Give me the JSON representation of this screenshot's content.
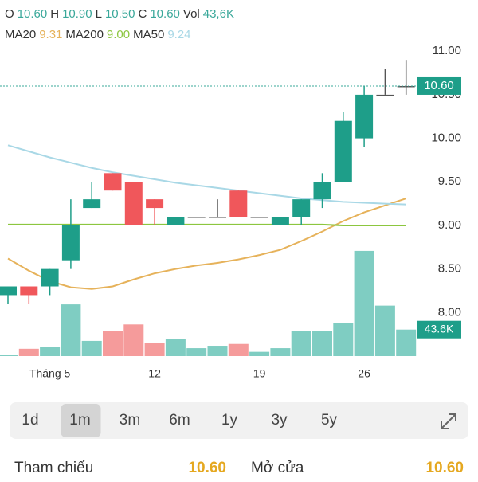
{
  "header": {
    "ohlc": [
      {
        "key": "O",
        "value": "10.60"
      },
      {
        "key": "H",
        "value": "10.90"
      },
      {
        "key": "L",
        "value": "10.50"
      },
      {
        "key": "C",
        "value": "10.60"
      },
      {
        "key": "Vol",
        "value": "43,6K"
      }
    ]
  },
  "chart_data": {
    "type": "candlestick",
    "categories": [
      null,
      null,
      "Tháng 5",
      null,
      null,
      null,
      null,
      "12",
      null,
      null,
      null,
      null,
      "19",
      null,
      null,
      null,
      null,
      "26",
      null,
      null
    ],
    "open": [
      8.2,
      8.3,
      8.3,
      8.6,
      9.2,
      9.6,
      9.5,
      9.3,
      9.0,
      9.1,
      9.1,
      9.4,
      9.1,
      9.0,
      9.1,
      9.3,
      9.5,
      10.0,
      10.5,
      10.6
    ],
    "high": [
      8.3,
      8.3,
      8.5,
      9.3,
      9.5,
      9.6,
      9.5,
      9.3,
      9.1,
      9.1,
      9.3,
      9.4,
      9.1,
      9.1,
      9.3,
      9.6,
      10.3,
      10.6,
      10.8,
      10.9
    ],
    "low": [
      8.1,
      8.1,
      8.2,
      8.5,
      9.2,
      9.4,
      9.0,
      9.0,
      9.0,
      9.1,
      9.1,
      9.1,
      9.1,
      9.0,
      9.0,
      9.2,
      9.5,
      9.9,
      10.5,
      10.5
    ],
    "close": [
      8.3,
      8.2,
      8.5,
      9.0,
      9.3,
      9.4,
      9.0,
      9.2,
      9.1,
      9.1,
      9.1,
      9.1,
      9.1,
      9.1,
      9.3,
      9.5,
      10.2,
      10.5,
      10.5,
      10.6
    ],
    "volume": [
      2,
      12,
      15,
      85,
      25,
      41,
      52,
      21,
      28,
      13,
      17,
      20,
      7,
      13,
      41,
      41,
      54,
      173,
      83,
      43.6
    ],
    "volume_label": "43.6K",
    "vlim": [
      0,
      520
    ],
    "colors": {
      "up": "#1e9e89",
      "down": "#f0575b",
      "flat": "#555555",
      "up_volume": "#7fcdc2",
      "down_volume": "#f59b9b"
    },
    "ma": [
      {
        "name": "MA20",
        "label": "9.31",
        "color": "#e6b25a",
        "values": [
          8.62,
          8.48,
          8.36,
          8.29,
          8.27,
          8.3,
          8.38,
          8.45,
          8.5,
          8.54,
          8.57,
          8.61,
          8.66,
          8.72,
          8.82,
          8.93,
          9.05,
          9.15,
          9.23,
          9.31
        ]
      },
      {
        "name": "MA200",
        "label": "9.00",
        "color": "#8cc63f",
        "values": [
          9.01,
          9.01,
          9.01,
          9.01,
          9.01,
          9.01,
          9.01,
          9.01,
          9.01,
          9.01,
          9.01,
          9.01,
          9.01,
          9.01,
          9.01,
          9.01,
          9.0,
          9.0,
          9.0,
          9.0
        ]
      },
      {
        "name": "MA50",
        "label": "9.24",
        "color": "#a9d8e6",
        "values": [
          9.92,
          9.85,
          9.78,
          9.72,
          9.66,
          9.61,
          9.57,
          9.53,
          9.49,
          9.46,
          9.43,
          9.4,
          9.37,
          9.34,
          9.31,
          9.29,
          9.27,
          9.26,
          9.25,
          9.24
        ]
      }
    ],
    "last_price": {
      "value": 10.6,
      "label": "10.60"
    },
    "ylim": [
      7.5,
      11.13
    ],
    "yticks": [
      {
        "value": 11,
        "label": "11.00"
      },
      {
        "value": 10.5,
        "label": "10.50"
      },
      {
        "value": 10,
        "label": "10.00"
      },
      {
        "value": 9.5,
        "label": "9.50"
      },
      {
        "value": 9,
        "label": "9.00"
      },
      {
        "value": 8.5,
        "label": "8.50"
      },
      {
        "value": 8,
        "label": "8.00"
      }
    ]
  },
  "tabs": {
    "items": [
      "1d",
      "1m",
      "3m",
      "6m",
      "1y",
      "3y",
      "5y"
    ],
    "selected": "1m"
  },
  "footer": {
    "items": [
      {
        "label": "Tham chiếu",
        "value": "10.60"
      },
      {
        "label": "Mở cửa",
        "value": "10.60"
      }
    ]
  }
}
